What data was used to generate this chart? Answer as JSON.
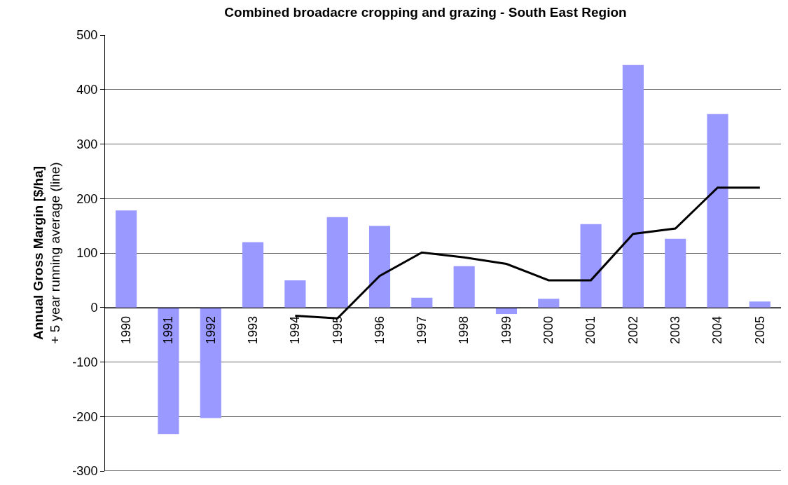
{
  "chart_data": {
    "type": "bar",
    "title": "Combined broadacre cropping and grazing - South East Region",
    "ylabel": "Annual Gross Margin [$/ha]\n+ 5 year running average (line)",
    "categories": [
      "1990",
      "1991",
      "1992",
      "1993",
      "1994",
      "1995",
      "1996",
      "1997",
      "1998",
      "1999",
      "2000",
      "2001",
      "2002",
      "2003",
      "2004",
      "2005"
    ],
    "series": [
      {
        "color": "#9999ff",
        "values": [
          178,
          -232,
          -203,
          120,
          50,
          166,
          150,
          18,
          76,
          -12,
          16,
          153,
          445,
          126,
          355,
          11
        ]
      },
      {
        "type": "line",
        "color": "#000000",
        "marker": "none",
        "line_style": "solid",
        "values": [
          null,
          null,
          null,
          null,
          -15,
          -20,
          58,
          101,
          92,
          80,
          50,
          50,
          135,
          145,
          220,
          220
        ]
      }
    ],
    "ylim": [
      -300,
      500
    ],
    "yticks": [
      -300,
      -200,
      -100,
      0,
      100,
      200,
      300,
      400,
      500
    ],
    "grid": "y",
    "legend": false
  }
}
